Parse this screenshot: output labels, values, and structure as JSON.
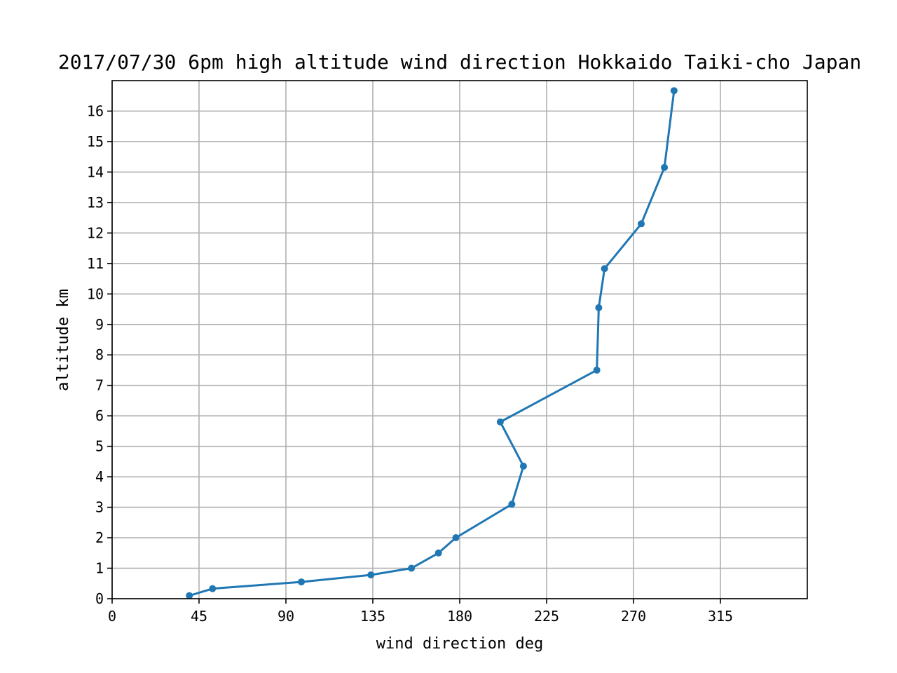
{
  "chart_data": {
    "type": "line",
    "title": "2017/07/30 6pm high altitude wind direction Hokkaido Taiki-cho Japan",
    "xlabel": "wind direction deg",
    "ylabel": "altitude km",
    "xlim": [
      0,
      360
    ],
    "ylim": [
      0,
      17
    ],
    "xticks": [
      0,
      45,
      90,
      135,
      180,
      225,
      270,
      315
    ],
    "yticks": [
      0,
      1,
      2,
      3,
      4,
      5,
      6,
      7,
      8,
      9,
      10,
      11,
      12,
      13,
      14,
      15,
      16
    ],
    "grid": true,
    "series": [
      {
        "color": "#1f77b4",
        "marker": "circle",
        "points": [
          {
            "x": 40,
            "y": 0.1
          },
          {
            "x": 52,
            "y": 0.33
          },
          {
            "x": 98,
            "y": 0.55
          },
          {
            "x": 134,
            "y": 0.78
          },
          {
            "x": 155,
            "y": 1.0
          },
          {
            "x": 169,
            "y": 1.5
          },
          {
            "x": 178,
            "y": 2.0
          },
          {
            "x": 207,
            "y": 3.1
          },
          {
            "x": 213,
            "y": 4.35
          },
          {
            "x": 201,
            "y": 5.8
          },
          {
            "x": 251,
            "y": 7.5
          },
          {
            "x": 252,
            "y": 9.55
          },
          {
            "x": 255,
            "y": 10.83
          },
          {
            "x": 274,
            "y": 12.3
          },
          {
            "x": 286,
            "y": 14.15
          },
          {
            "x": 291,
            "y": 16.67
          }
        ]
      }
    ]
  }
}
